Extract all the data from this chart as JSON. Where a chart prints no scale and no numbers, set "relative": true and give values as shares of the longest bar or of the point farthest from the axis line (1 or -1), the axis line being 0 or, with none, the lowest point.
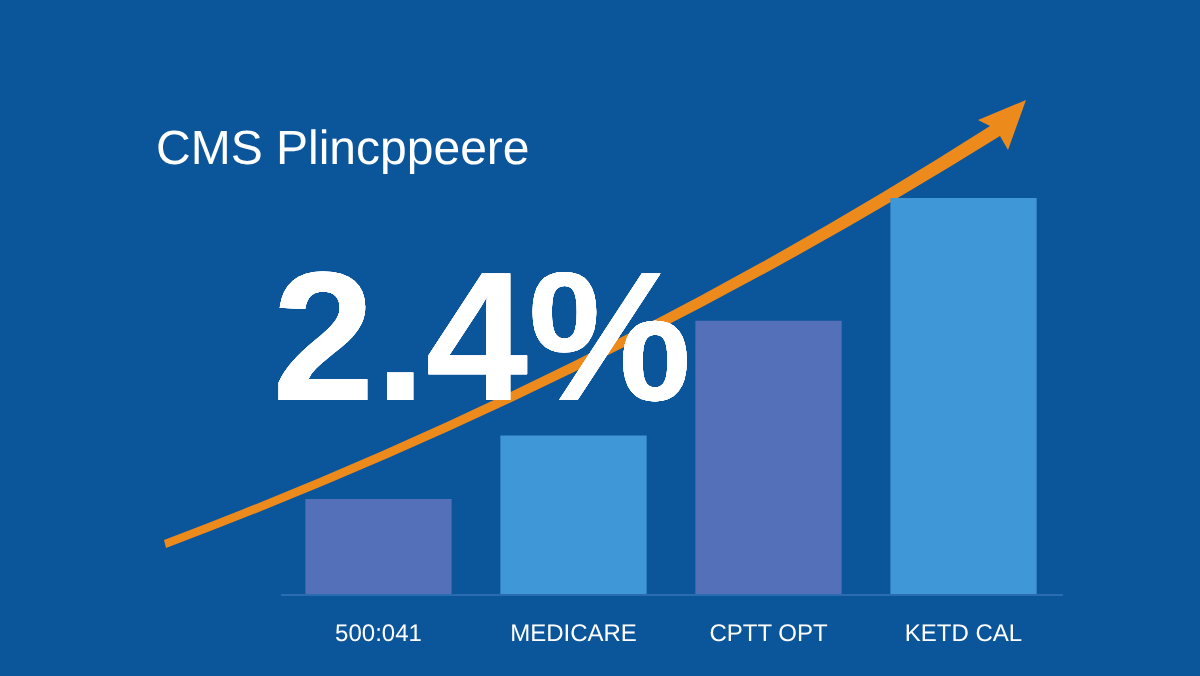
{
  "chart_data": {
    "type": "bar",
    "title": "CMS Plincppeere",
    "categories": [
      "500:041",
      "MEDICARE",
      "CPTT OPT",
      "KETD CAL"
    ],
    "values": [
      0.24,
      0.4,
      0.69,
      1
    ],
    "colors": [
      "#5470b8",
      "#3f97d8",
      "#5470b8",
      "#3f97d8"
    ],
    "relative": true,
    "annotations": [
      "2.4%"
    ]
  }
}
